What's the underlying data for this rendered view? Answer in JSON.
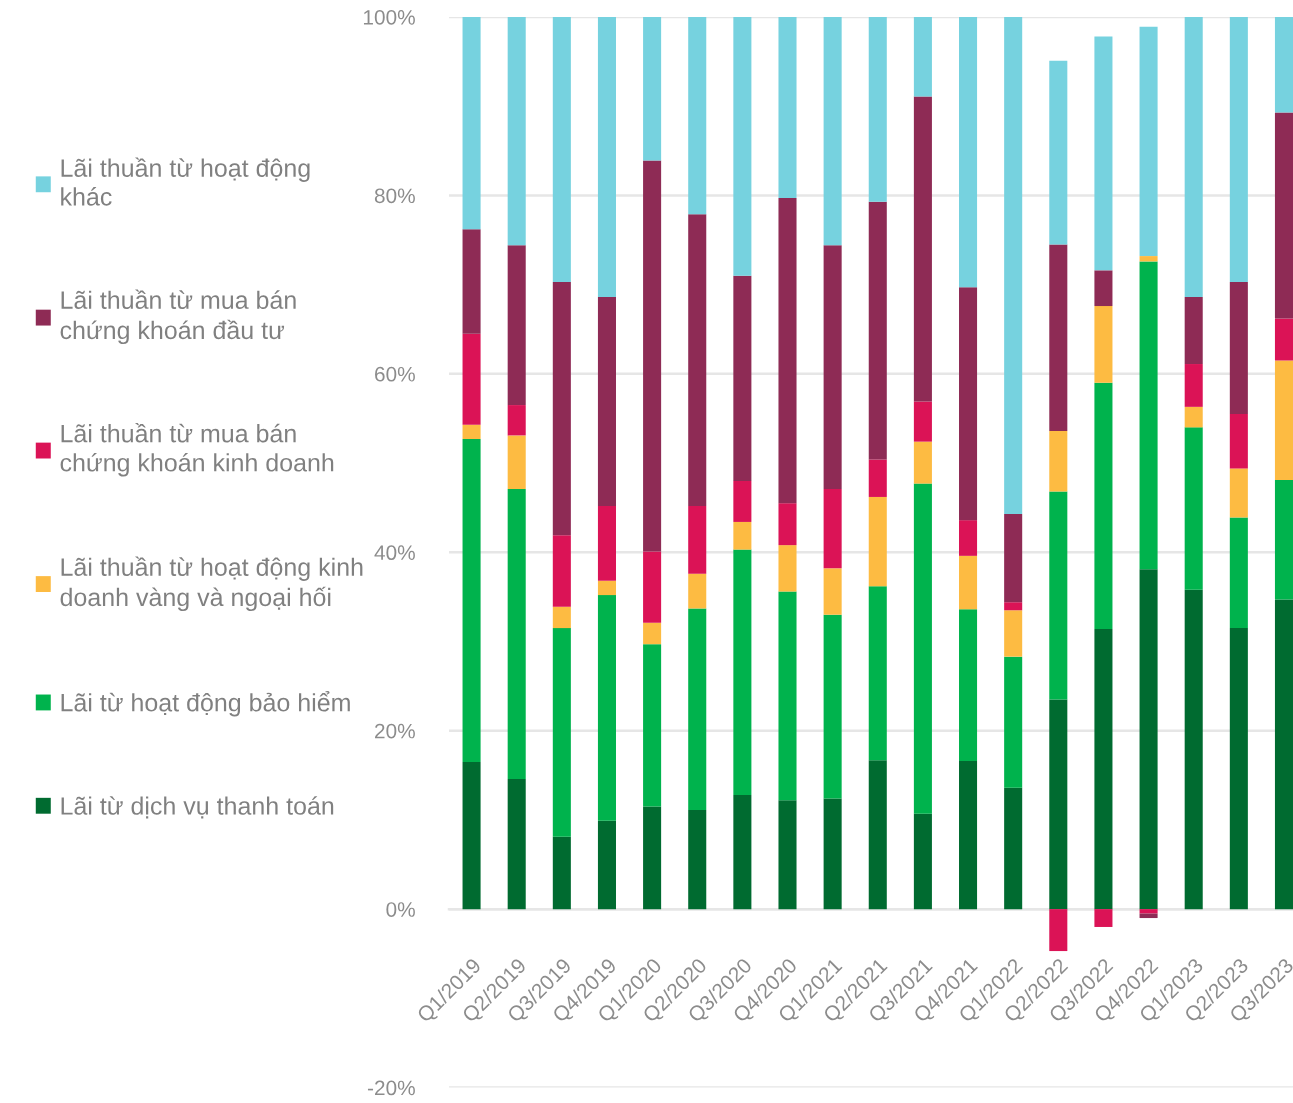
{
  "chart_data": {
    "type": "bar",
    "stacked": true,
    "categories": [
      "Q1/2019",
      "Q2/2019",
      "Q3/2019",
      "Q4/2019",
      "Q1/2020",
      "Q2/2020",
      "Q3/2020",
      "Q4/2020",
      "Q1/2021",
      "Q2/2021",
      "Q3/2021",
      "Q4/2021",
      "Q1/2022",
      "Q2/2022",
      "Q3/2022",
      "Q4/2022",
      "Q1/2023",
      "Q2/2023",
      "Q3/2023"
    ],
    "series": [
      {
        "name": "Lãi từ dịch vụ thanh toán",
        "color": "#006b30",
        "values": [
          16.5,
          14.6,
          8.1,
          9.9,
          11.5,
          11.1,
          12.8,
          12.2,
          12.4,
          16.7,
          10.7,
          16.6,
          13.6,
          23.5,
          31.4,
          38.1,
          35.8,
          31.5,
          34.7
        ]
      },
      {
        "name": "Lãi từ hoạt động bảo hiểm",
        "color": "#00b34d",
        "values": [
          36.2,
          32.5,
          23.4,
          25.3,
          18.2,
          22.6,
          27.5,
          23.4,
          20.6,
          19.5,
          37.0,
          17.0,
          14.7,
          23.3,
          27.6,
          34.5,
          18.2,
          12.4,
          13.4
        ]
      },
      {
        "name": "Lãi thuần từ hoạt động kinh doanh vàng và ngoại hối",
        "color": "#fdbb42",
        "values": [
          1.6,
          6.0,
          2.4,
          1.6,
          2.4,
          3.9,
          3.1,
          5.2,
          5.2,
          10.0,
          4.7,
          6.0,
          5.2,
          6.8,
          8.6,
          0.6,
          2.3,
          5.5,
          13.4
        ]
      },
      {
        "name": "Lãi thuần từ mua bán chứng khoán kinh doanh",
        "color": "#db1356",
        "values": [
          10.2,
          3.4,
          8.0,
          8.4,
          8.0,
          7.6,
          4.6,
          4.7,
          8.9,
          4.2,
          4.5,
          4.0,
          0.9,
          -4.7,
          -2.0,
          -0.5,
          4.8,
          6.1,
          4.7
        ]
      },
      {
        "name": "Lãi thuần từ mua bán chứng khoán đầu tư",
        "color": "#8e2b55",
        "values": [
          11.7,
          17.9,
          28.4,
          23.4,
          43.8,
          32.7,
          23.0,
          34.2,
          27.3,
          28.9,
          34.2,
          26.1,
          9.9,
          20.9,
          4.0,
          -0.5,
          7.5,
          14.8,
          23.1
        ]
      },
      {
        "name": "Lãi thuần từ hoạt động khác",
        "color": "#76d2df",
        "values": [
          23.8,
          25.6,
          29.7,
          31.4,
          16.1,
          22.1,
          29.0,
          20.3,
          25.6,
          20.7,
          8.9,
          30.3,
          55.7,
          20.6,
          26.2,
          25.7,
          31.4,
          29.7,
          10.7
        ]
      }
    ],
    "ylim": [
      -20,
      100
    ],
    "yticks": [
      {
        "value": -20,
        "label": "-20%"
      },
      {
        "value": 0,
        "label": "0%"
      },
      {
        "value": 20,
        "label": "20%"
      },
      {
        "value": 40,
        "label": "40%"
      },
      {
        "value": 60,
        "label": "60%"
      },
      {
        "value": 80,
        "label": "80%"
      },
      {
        "value": 100,
        "label": "100%"
      }
    ],
    "grid": "y",
    "legend": "left"
  }
}
